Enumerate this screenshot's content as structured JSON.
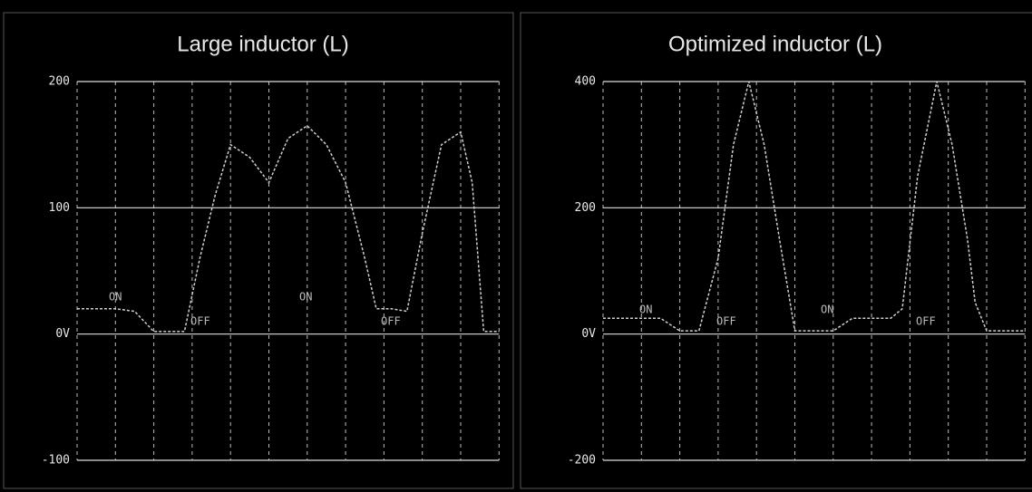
{
  "chart_data": [
    {
      "type": "line",
      "title": "Large inductor (L)",
      "x": [
        0,
        0.5,
        1,
        1.5,
        2,
        2.5,
        2.8,
        3.2,
        3.6,
        4,
        4.5,
        5,
        5.5,
        6,
        6.5,
        7,
        7.5,
        7.8,
        8.2,
        8.6,
        9,
        9.5,
        10,
        10.3,
        10.6,
        11
      ],
      "series": [
        {
          "color": "#cfcfcf",
          "values": [
            20,
            20,
            20,
            18,
            2,
            2,
            2,
            60,
            110,
            150,
            140,
            120,
            155,
            165,
            150,
            120,
            60,
            20,
            20,
            18,
            80,
            150,
            160,
            120,
            2,
            2
          ]
        }
      ],
      "annotations": [
        "ON",
        "OFF",
        "ON",
        "OFF"
      ],
      "xlim": [
        0,
        11
      ],
      "xticks": [
        0,
        1,
        2,
        3,
        4,
        5,
        6,
        7,
        8,
        9,
        10,
        11
      ],
      "ylim": [
        -100,
        200
      ],
      "yticks": [
        {
          "value": -100,
          "label": "-100"
        },
        {
          "value": 0,
          "label": "0V"
        },
        {
          "value": 100,
          "label": "100"
        },
        {
          "value": 200,
          "label": "200"
        }
      ],
      "grid": true
    },
    {
      "type": "line",
      "title": "Optimized inductor (L)",
      "x": [
        0,
        0.5,
        1,
        1.5,
        2,
        2.5,
        3,
        3.4,
        3.8,
        4.2,
        4.6,
        5,
        5.5,
        6,
        6.5,
        7,
        7.5,
        7.8,
        8.2,
        8.7,
        9.1,
        9.5,
        9.7,
        10,
        10.5,
        11
      ],
      "series": [
        {
          "color": "#cfcfcf",
          "values": [
            25,
            25,
            25,
            25,
            5,
            5,
            120,
            300,
            400,
            300,
            150,
            5,
            5,
            5,
            25,
            25,
            25,
            40,
            250,
            400,
            300,
            150,
            50,
            5,
            5,
            5
          ]
        }
      ],
      "annotations": [
        "ON",
        "OFF",
        "ON",
        "OFF"
      ],
      "xlim": [
        0,
        11
      ],
      "xticks": [
        0,
        1,
        2,
        3,
        4,
        5,
        6,
        7,
        8,
        9,
        10,
        11
      ],
      "ylim": [
        -200,
        400
      ],
      "yticks": [
        {
          "value": -200,
          "label": "-200"
        },
        {
          "value": 0,
          "label": "0V"
        },
        {
          "value": 200,
          "label": "200"
        },
        {
          "value": 400,
          "label": "400"
        }
      ],
      "grid": true
    }
  ]
}
